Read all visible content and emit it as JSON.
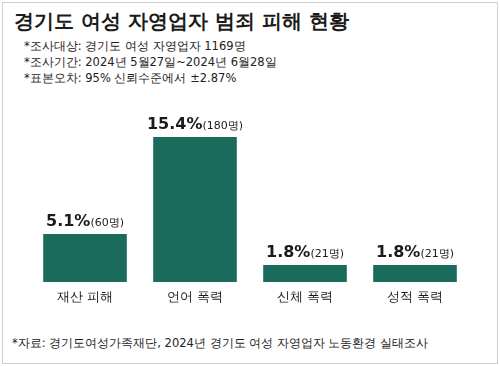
{
  "chart_data": {
    "type": "bar",
    "title": "경기도 여성 자영업자 범죄 피해 현황",
    "subtitle": [
      "*조사대상: 경기도 여성 자영업자 1169명",
      "*조사기간: 2024년 5월27일~2024년 6월28일",
      "*표본오차: 95% 신뢰수준에서 ±2.87%"
    ],
    "categories": [
      "재산 피해",
      "언어 폭력",
      "신체 폭력",
      "성적 폭력"
    ],
    "values": [
      5.1,
      15.4,
      1.8,
      1.8
    ],
    "value_labels": [
      "5.1%(60명)",
      "15.4%(180명)",
      "1.8%(21명)",
      "1.8%(21명)"
    ],
    "color": "#1a6b5c",
    "ylim": [
      0,
      17
    ],
    "data_labels": true,
    "tick_labels": "x",
    "grid": false,
    "source": "*자료: 경기도여성가족재단, 2024년 경기도 여성 자영업자 노동환경 실태조사"
  }
}
